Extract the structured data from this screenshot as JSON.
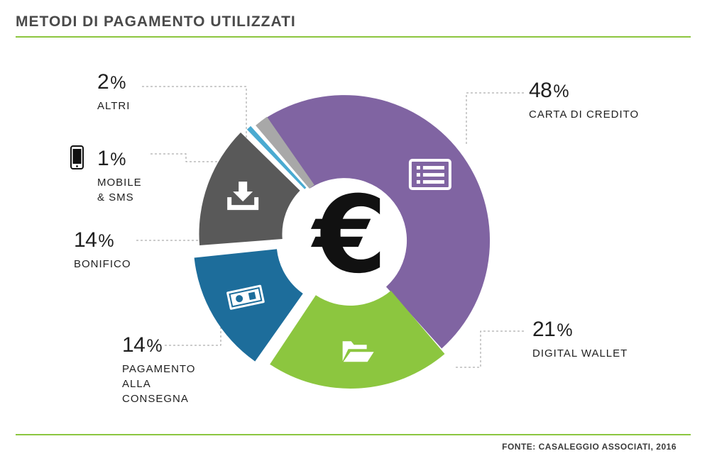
{
  "title": "METODI DI PAGAMENTO UTILIZZATI",
  "source": "FONTE: CASALEGGIO ASSOCIATI, 2016",
  "chart_data": {
    "type": "pie",
    "donut": true,
    "center_symbol": "€",
    "center_icon": "euro-icon",
    "unit": "%",
    "slices": [
      {
        "id": "carta-di-credito",
        "label": "CARTA DI CREDITO",
        "value": 48,
        "color": "#8064a2",
        "icon": "credit-card-icon"
      },
      {
        "id": "digital-wallet",
        "label": "DIGITAL WALLET",
        "value": 21,
        "color": "#8cc63f",
        "icon": "folder-icon"
      },
      {
        "id": "pagamento-alla-consegna",
        "label": "PAGAMENTO\nALLA\nCONSEGNA",
        "value": 14,
        "color": "#1d6d9b",
        "icon": "banknote-icon"
      },
      {
        "id": "bonifico",
        "label": "BONIFICO",
        "value": 14,
        "color": "#595959",
        "icon": "download-icon"
      },
      {
        "id": "mobile-sms",
        "label": "MOBILE\n& SMS",
        "value": 1,
        "color": "#4aaad1",
        "icon": "mobile-phone-icon"
      },
      {
        "id": "altri",
        "label": "ALTRI",
        "value": 2,
        "color": "#a8a8a8",
        "icon": ""
      }
    ]
  }
}
